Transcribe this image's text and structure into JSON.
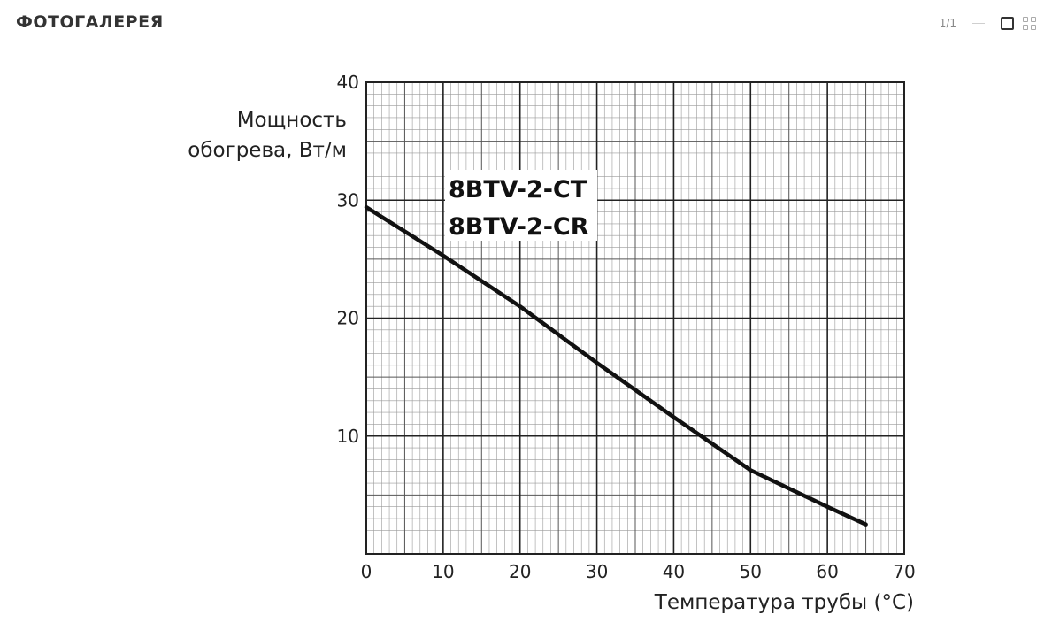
{
  "header": {
    "title": "ФОТОГАЛЕРЕЯ",
    "page_counter": "1/1",
    "single_view_icon": "square-icon",
    "grid_view_icon": "grid-icon"
  },
  "chart_data": {
    "type": "line",
    "title": "",
    "ylabel_line1": "Мощность",
    "ylabel_line2": "обогрева, Вт/м",
    "xlabel": "Температура трубы (°C)",
    "xlim": [
      0,
      70
    ],
    "ylim": [
      0,
      40
    ],
    "x_ticks": [
      0,
      10,
      20,
      30,
      40,
      50,
      60,
      70
    ],
    "y_ticks": [
      10,
      20,
      30,
      40
    ],
    "grid": true,
    "series_labels": [
      "8BTV-2-CT",
      "8BTV-2-CR"
    ],
    "series": [
      {
        "x": [
          0,
          10,
          20,
          30,
          40,
          50,
          60,
          65
        ],
        "y": [
          29.4,
          25.3,
          21.0,
          16.2,
          11.6,
          7.1,
          4.0,
          2.5
        ]
      }
    ]
  }
}
